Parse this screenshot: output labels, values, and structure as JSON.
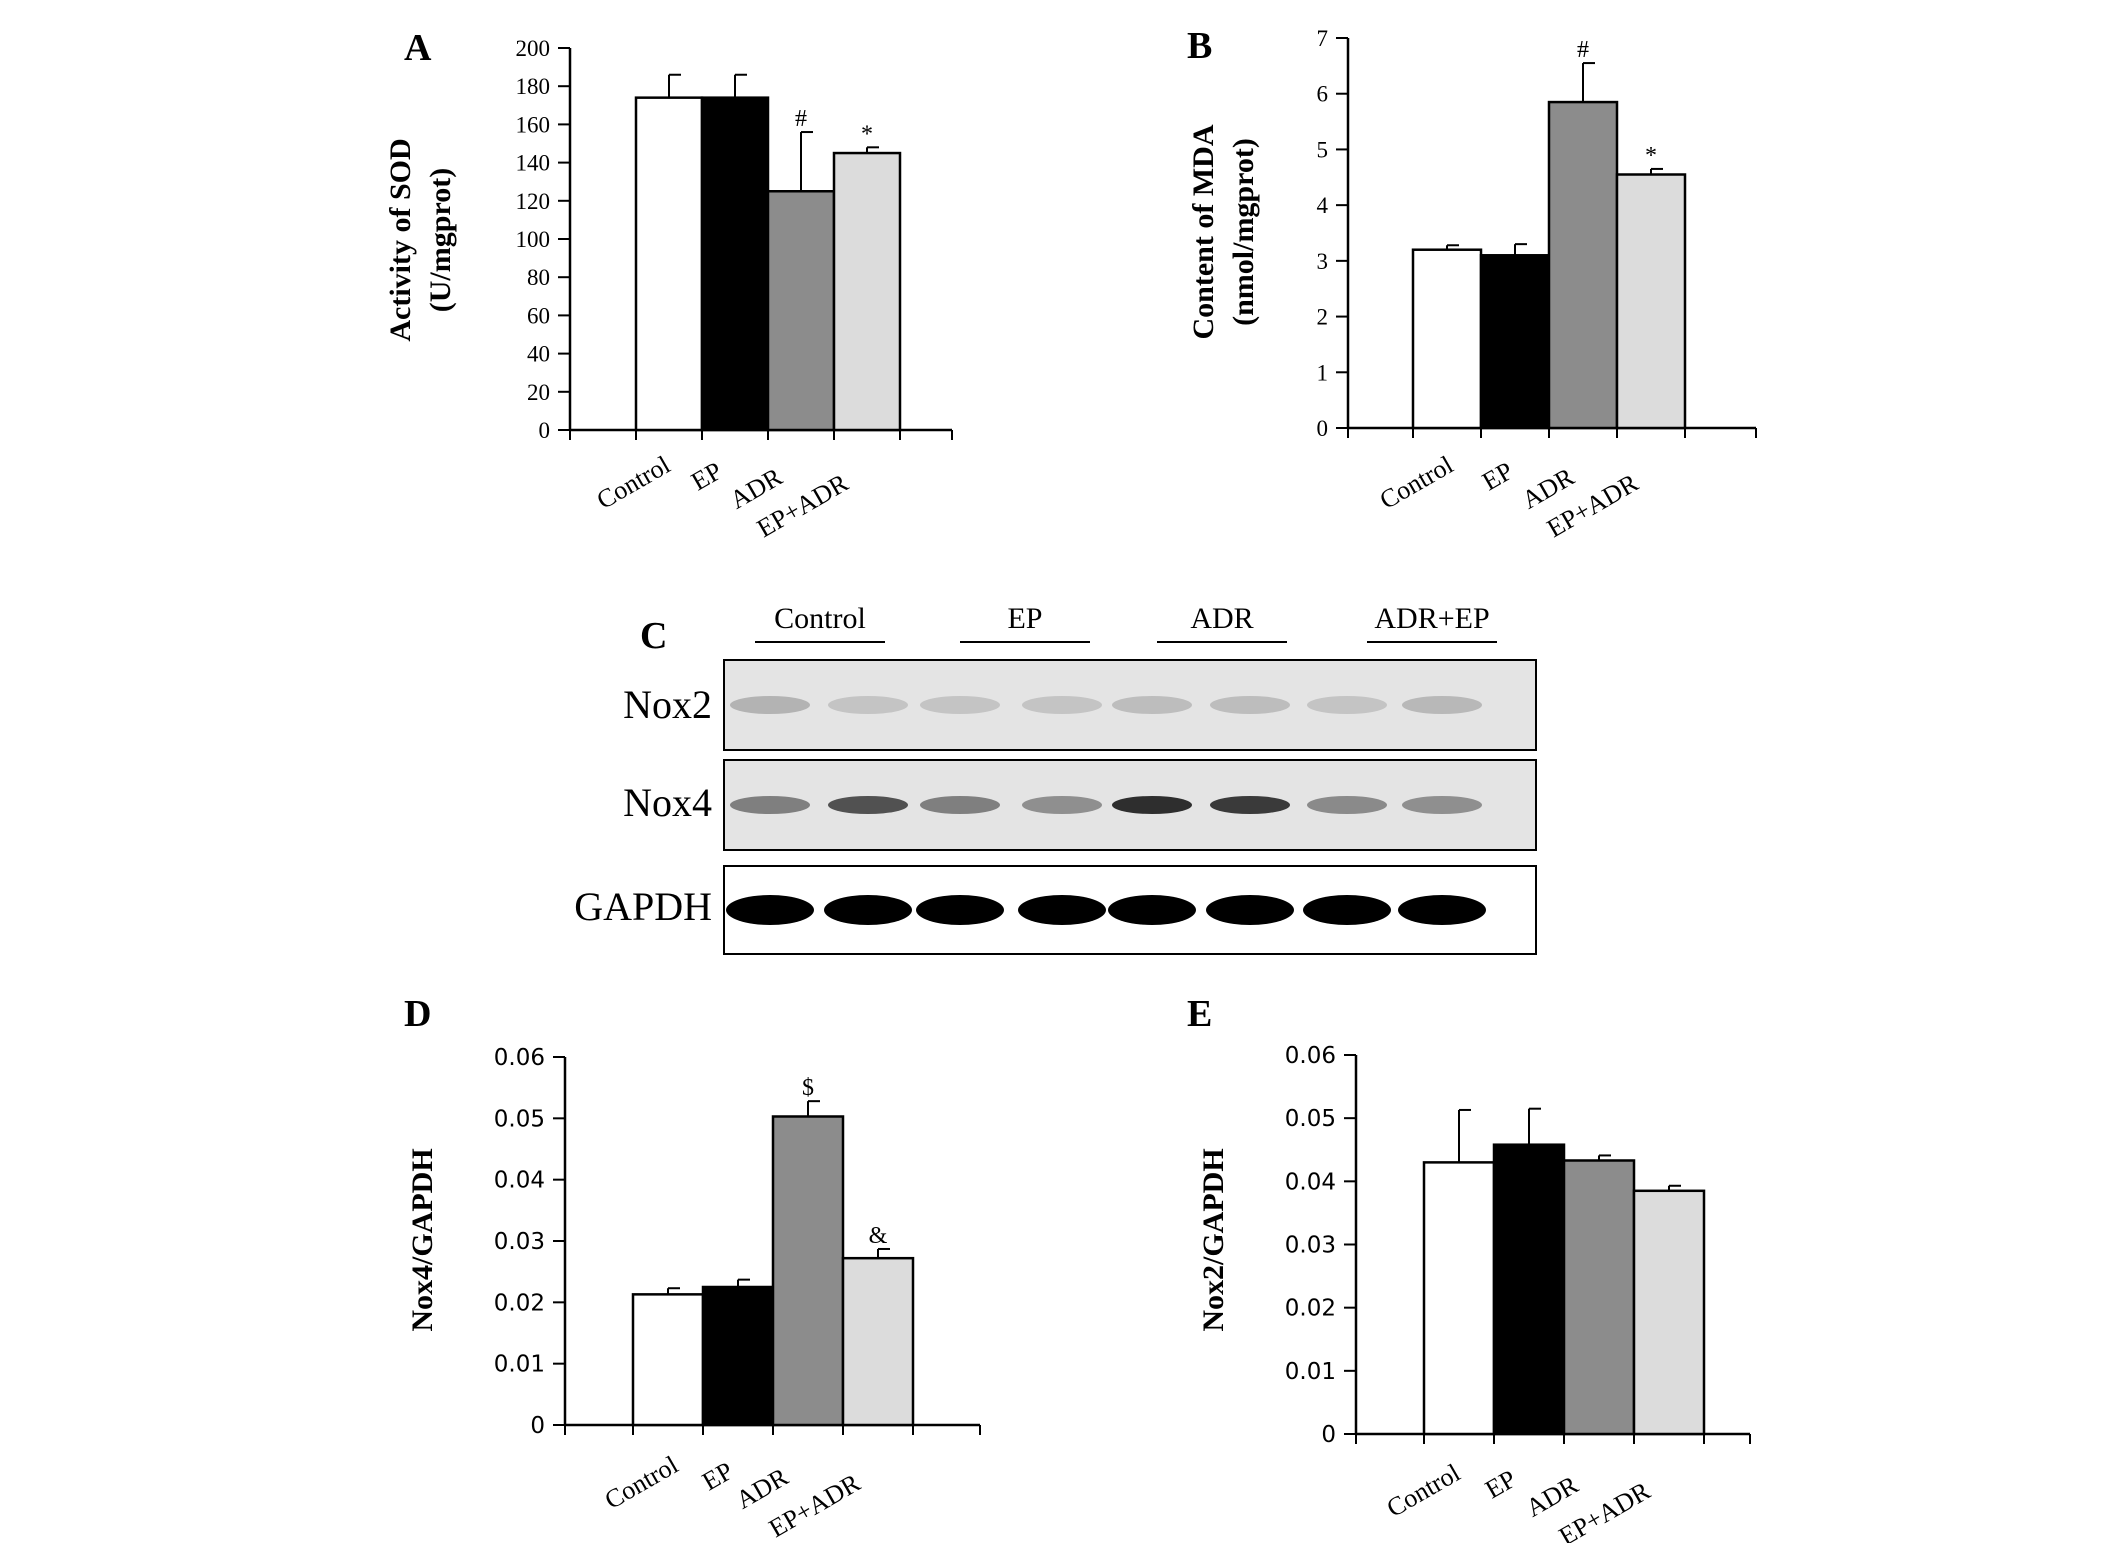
{
  "chart_data": [
    {
      "panel": "A",
      "type": "bar",
      "categories": [
        "Control",
        "EP",
        "ADR",
        "EP+ADR"
      ],
      "values": [
        174,
        174,
        125,
        145
      ],
      "errors": [
        12,
        12,
        31,
        3
      ],
      "annotations": [
        "",
        "",
        "#",
        "*"
      ],
      "colors": [
        "#ffffff",
        "#000000",
        "#8c8c8c",
        "#dcdcdc"
      ],
      "ylabel_lines": [
        "Activity of SOD",
        "(U/mgprot)"
      ],
      "ylim": [
        0,
        200
      ],
      "yticks": [
        0,
        20,
        40,
        60,
        80,
        100,
        120,
        140,
        160,
        180,
        200
      ],
      "ytick_labels": [
        "0",
        "20",
        "40",
        "60",
        "80",
        "100",
        "120",
        "140",
        "160",
        "180",
        "200"
      ],
      "grid": false,
      "legend": "none"
    },
    {
      "panel": "B",
      "type": "bar",
      "categories": [
        "Control",
        "EP",
        "ADR",
        "EP+ADR"
      ],
      "values": [
        3.2,
        3.1,
        5.85,
        4.55
      ],
      "errors": [
        0.08,
        0.2,
        0.7,
        0.1
      ],
      "annotations": [
        "",
        "",
        "#",
        "*"
      ],
      "colors": [
        "#ffffff",
        "#000000",
        "#8c8c8c",
        "#dcdcdc"
      ],
      "ylabel_lines": [
        "Content of MDA",
        "(nmol/mgprot)"
      ],
      "ylim": [
        0,
        7
      ],
      "yticks": [
        0,
        1,
        2,
        3,
        4,
        5,
        6,
        7
      ],
      "ytick_labels": [
        "0",
        "1",
        "2",
        "3",
        "4",
        "5",
        "6",
        "7"
      ],
      "grid": false,
      "legend": "none"
    },
    {
      "panel": "D",
      "type": "bar",
      "categories": [
        "Control",
        "EP",
        "ADR",
        "EP+ADR"
      ],
      "values": [
        0.0213,
        0.0225,
        0.0503,
        0.0272
      ],
      "errors": [
        0.001,
        0.0012,
        0.0025,
        0.0015
      ],
      "annotations": [
        "",
        "",
        "$",
        "&"
      ],
      "colors": [
        "#ffffff",
        "#000000",
        "#8c8c8c",
        "#dcdcdc"
      ],
      "ylabel_lines": [
        "Nox4/GAPDH"
      ],
      "ylim": [
        0,
        0.06
      ],
      "yticks": [
        0,
        0.01,
        0.02,
        0.03,
        0.04,
        0.05,
        0.06
      ],
      "ytick_labels": [
        "0",
        "0.01",
        "0.02",
        "0.03",
        "0.04",
        "0.05",
        "0.06"
      ],
      "grid": false,
      "legend": "none"
    },
    {
      "panel": "E",
      "type": "bar",
      "categories": [
        "Control",
        "EP",
        "ADR",
        "EP+ADR"
      ],
      "values": [
        0.043,
        0.0458,
        0.0433,
        0.0385
      ],
      "errors": [
        0.0083,
        0.0057,
        0.0008,
        0.0008
      ],
      "annotations": [
        "",
        "",
        "",
        ""
      ],
      "colors": [
        "#ffffff",
        "#000000",
        "#8c8c8c",
        "#dcdcdc"
      ],
      "ylabel_lines": [
        "Nox2/GAPDH"
      ],
      "ylim": [
        0,
        0.06
      ],
      "yticks": [
        0,
        0.01,
        0.02,
        0.03,
        0.04,
        0.05,
        0.06
      ],
      "ytick_labels": [
        "0",
        "0.01",
        "0.02",
        "0.03",
        "0.04",
        "0.05",
        "0.06"
      ],
      "grid": false,
      "legend": "none"
    }
  ],
  "blot": {
    "panel": "C",
    "groups": [
      "Control",
      "EP",
      "ADR",
      "ADR+EP"
    ],
    "rows": [
      "Nox2",
      "Nox4",
      "GAPDH"
    ],
    "lanes_per_group": 2,
    "band_intensity": {
      "Nox2": [
        0.22,
        0.15,
        0.15,
        0.15,
        0.18,
        0.18,
        0.15,
        0.2
      ],
      "Nox4": [
        0.45,
        0.65,
        0.45,
        0.38,
        0.8,
        0.75,
        0.4,
        0.38
      ],
      "GAPDH": [
        1.0,
        1.0,
        1.0,
        1.0,
        1.0,
        1.0,
        1.0,
        1.0
      ]
    }
  }
}
